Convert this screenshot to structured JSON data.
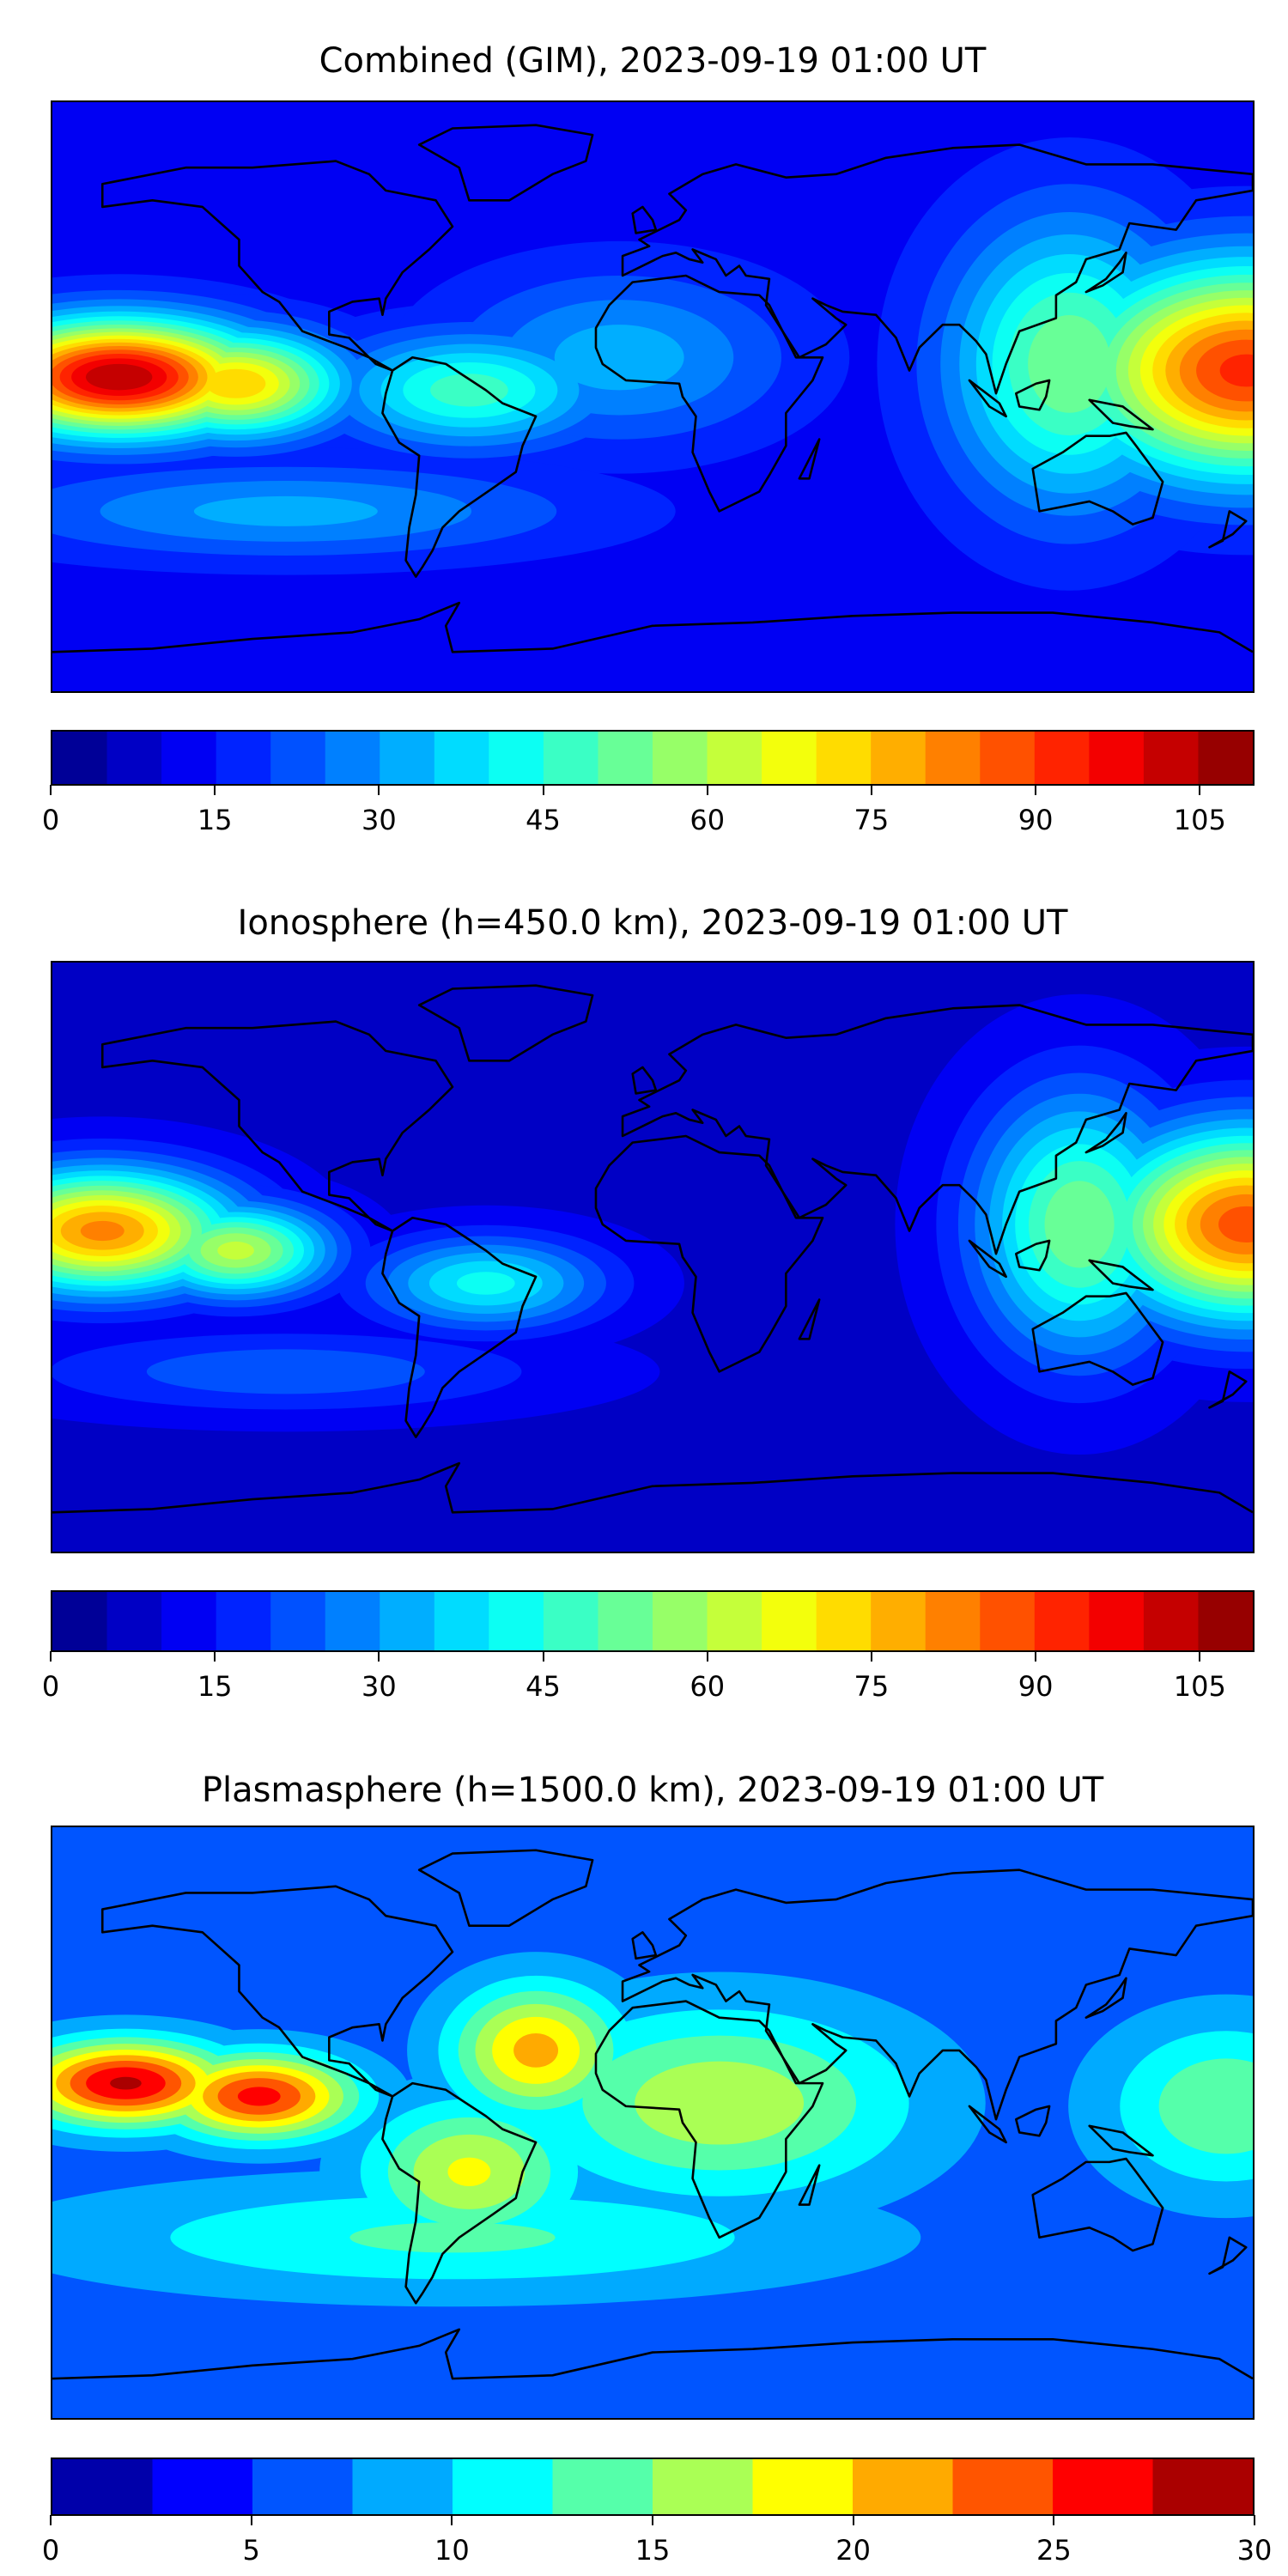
{
  "chart_data": [
    {
      "type": "heatmap",
      "title": "Combined (GIM), 2023-09-19 01:00 UT",
      "projection": "equirectangular",
      "lon_range": [
        -180,
        180
      ],
      "lat_range": [
        -90,
        90
      ],
      "levels": {
        "min": 0,
        "max": 110,
        "step": 5
      },
      "colorbar_ticks": [
        "0",
        "15",
        "30",
        "45",
        "60",
        "75",
        "90",
        "105"
      ],
      "colorbar_tick_values": [
        0,
        15,
        30,
        45,
        60,
        75,
        90,
        105
      ],
      "colormap": "jet",
      "background_value": 12,
      "features": [
        {
          "name": "central-pacific-max",
          "lon": -160,
          "lat": 6,
          "value": 105,
          "slon": 30,
          "slat": 12
        },
        {
          "name": "east-pacific-tongue",
          "lon": -125,
          "lat": 4,
          "value": 75,
          "slon": 22,
          "slat": 11
        },
        {
          "name": "west-pacific-max",
          "lon": 178,
          "lat": 8,
          "value": 92,
          "slon": 35,
          "slat": 22
        },
        {
          "name": "asia-tongue",
          "lon": 125,
          "lat": 10,
          "value": 55,
          "slon": 25,
          "slat": 30
        },
        {
          "name": "south-america-band",
          "lon": -55,
          "lat": 2,
          "value": 48,
          "slon": 28,
          "slat": 12
        },
        {
          "name": "atlantic-africa",
          "lon": -10,
          "lat": 12,
          "value": 33,
          "slon": 35,
          "slat": 18
        },
        {
          "name": "southern-band",
          "lon": -110,
          "lat": -35,
          "value": 32,
          "slon": 60,
          "slat": 10
        }
      ]
    },
    {
      "type": "heatmap",
      "title": "Ionosphere  (h=450.0 km), 2023-09-19 01:00 UT",
      "projection": "equirectangular",
      "lon_range": [
        -180,
        180
      ],
      "lat_range": [
        -90,
        90
      ],
      "levels": {
        "min": 0,
        "max": 110,
        "step": 5
      },
      "colorbar_ticks": [
        "0",
        "15",
        "30",
        "45",
        "60",
        "75",
        "90",
        "105"
      ],
      "colorbar_tick_values": [
        0,
        15,
        30,
        45,
        60,
        75,
        90,
        105
      ],
      "colormap": "jet",
      "background_value": 8,
      "features": [
        {
          "name": "central-pacific-max",
          "lon": -165,
          "lat": 8,
          "value": 82,
          "slon": 28,
          "slat": 13
        },
        {
          "name": "east-pacific-tongue",
          "lon": -125,
          "lat": 2,
          "value": 62,
          "slon": 20,
          "slat": 10
        },
        {
          "name": "west-pacific-max",
          "lon": 178,
          "lat": 10,
          "value": 88,
          "slon": 30,
          "slat": 20
        },
        {
          "name": "asia-tongue",
          "lon": 128,
          "lat": 10,
          "value": 55,
          "slon": 22,
          "slat": 28
        },
        {
          "name": "south-america-band",
          "lon": -50,
          "lat": -8,
          "value": 42,
          "slon": 25,
          "slat": 10
        },
        {
          "name": "southern-band",
          "lon": -110,
          "lat": -35,
          "value": 24,
          "slon": 55,
          "slat": 9
        }
      ]
    },
    {
      "type": "heatmap",
      "title": "Plasmasphere (h=1500.0 km), 2023-09-19 01:00 UT",
      "projection": "equirectangular",
      "lon_range": [
        -180,
        180
      ],
      "lat_range": [
        -90,
        90
      ],
      "levels": {
        "min": 0,
        "max": 30,
        "step": 2.5
      },
      "colorbar_ticks": [
        "0",
        "5",
        "10",
        "15",
        "20",
        "25",
        "30"
      ],
      "colorbar_tick_values": [
        0,
        5,
        10,
        15,
        20,
        25,
        30
      ],
      "colormap": "jet",
      "background_value": 6,
      "features": [
        {
          "name": "pacific-max-west",
          "lon": -158,
          "lat": 12,
          "value": 28,
          "slon": 22,
          "slat": 9
        },
        {
          "name": "pacific-max-east",
          "lon": -118,
          "lat": 8,
          "value": 26,
          "slon": 20,
          "slat": 9
        },
        {
          "name": "atlantic-max",
          "lon": -35,
          "lat": 22,
          "value": 21,
          "slon": 18,
          "slat": 14
        },
        {
          "name": "africa-band",
          "lon": 20,
          "lat": 6,
          "value": 17,
          "slon": 40,
          "slat": 20
        },
        {
          "name": "south-america",
          "lon": -55,
          "lat": -15,
          "value": 18,
          "slon": 22,
          "slat": 15
        },
        {
          "name": "west-pacific",
          "lon": 172,
          "lat": 5,
          "value": 15,
          "slon": 25,
          "slat": 18
        },
        {
          "name": "southern-band",
          "lon": -60,
          "lat": -35,
          "value": 13,
          "slon": 80,
          "slat": 12
        }
      ]
    }
  ]
}
